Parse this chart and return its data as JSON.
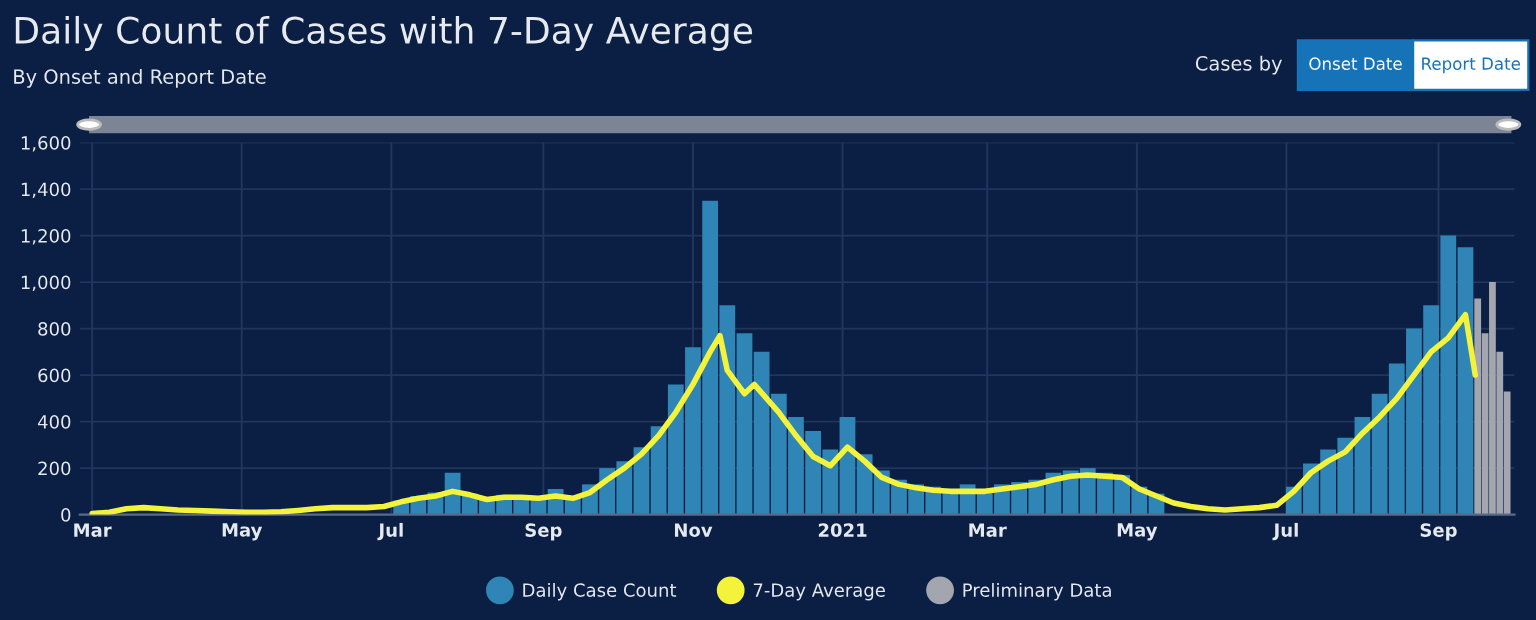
{
  "chart_data": {
    "type": "bar",
    "title": "Daily Count of Cases with 7-Day Average",
    "subtitle": "By Onset and Report Date",
    "annotations": [
      "Cases by",
      "Onset Date",
      "Report Date"
    ],
    "xlim": [
      "2020-02-25",
      "2021-10-02"
    ],
    "xticks": [
      {
        "value": "2020-03-01",
        "label": "Mar"
      },
      {
        "value": "2020-05-01",
        "label": "May"
      },
      {
        "value": "2020-07-01",
        "label": "Jul"
      },
      {
        "value": "2020-09-01",
        "label": "Sep"
      },
      {
        "value": "2020-11-01",
        "label": "Nov"
      },
      {
        "value": "2021-01-01",
        "label": "2021"
      },
      {
        "value": "2021-03-01",
        "label": "Mar"
      },
      {
        "value": "2021-05-01",
        "label": "May"
      },
      {
        "value": "2021-07-01",
        "label": "Jul"
      },
      {
        "value": "2021-09-01",
        "label": "Sep"
      }
    ],
    "ylim": [
      0,
      1600
    ],
    "yticks": [
      {
        "value": 0,
        "label": "0"
      },
      {
        "value": 200,
        "label": "200"
      },
      {
        "value": 400,
        "label": "400"
      },
      {
        "value": 600,
        "label": "600"
      },
      {
        "value": 800,
        "label": "800"
      },
      {
        "value": 1000,
        "label": "1,000"
      },
      {
        "value": 1200,
        "label": "1,200"
      },
      {
        "value": 1400,
        "label": "1,400"
      },
      {
        "value": 1600,
        "label": "1,600"
      }
    ],
    "grid": true,
    "legend": "bottom",
    "series": [
      {
        "name": "Daily Case Count",
        "type": "bar",
        "color": "#2f85b5",
        "x": [
          "2020-07-05",
          "2020-07-12",
          "2020-07-19",
          "2020-07-26",
          "2020-08-02",
          "2020-08-09",
          "2020-08-16",
          "2020-08-23",
          "2020-08-30",
          "2020-09-06",
          "2020-09-13",
          "2020-09-20",
          "2020-09-27",
          "2020-10-04",
          "2020-10-11",
          "2020-10-18",
          "2020-10-25",
          "2020-11-01",
          "2020-11-08",
          "2020-11-15",
          "2020-11-22",
          "2020-11-29",
          "2020-12-06",
          "2020-12-13",
          "2020-12-20",
          "2020-12-27",
          "2021-01-03",
          "2021-01-10",
          "2021-01-17",
          "2021-01-24",
          "2021-01-31",
          "2021-02-07",
          "2021-02-14",
          "2021-02-21",
          "2021-02-28",
          "2021-03-07",
          "2021-03-14",
          "2021-03-21",
          "2021-03-28",
          "2021-04-04",
          "2021-04-11",
          "2021-04-18",
          "2021-04-25",
          "2021-05-02",
          "2021-05-09",
          "2021-05-16",
          "2021-05-23",
          "2021-05-30",
          "2021-06-06",
          "2021-06-13",
          "2021-06-20",
          "2021-06-27",
          "2021-07-04",
          "2021-07-11",
          "2021-07-18",
          "2021-07-25",
          "2021-08-01",
          "2021-08-08",
          "2021-08-15",
          "2021-08-22",
          "2021-08-29",
          "2021-09-05",
          "2021-09-12"
        ],
        "values": [
          60,
          80,
          95,
          180,
          90,
          70,
          85,
          80,
          75,
          110,
          80,
          130,
          200,
          230,
          290,
          380,
          560,
          720,
          1350,
          900,
          780,
          700,
          520,
          420,
          360,
          280,
          420,
          260,
          190,
          150,
          130,
          120,
          110,
          130,
          110,
          130,
          140,
          150,
          180,
          190,
          200,
          180,
          170,
          120,
          90,
          null,
          null,
          null,
          null,
          null,
          null,
          null,
          120,
          220,
          280,
          330,
          420,
          520,
          650,
          800,
          900,
          1200,
          1150
        ]
      },
      {
        "name": "7-Day Average",
        "type": "line",
        "color": "#f3f33c",
        "x": [
          "2020-03-01",
          "2020-03-08",
          "2020-03-15",
          "2020-03-22",
          "2020-03-29",
          "2020-04-05",
          "2020-04-12",
          "2020-04-19",
          "2020-04-26",
          "2020-05-03",
          "2020-05-10",
          "2020-05-17",
          "2020-05-24",
          "2020-05-31",
          "2020-06-07",
          "2020-06-14",
          "2020-06-21",
          "2020-06-28",
          "2020-07-05",
          "2020-07-12",
          "2020-07-19",
          "2020-07-26",
          "2020-08-02",
          "2020-08-09",
          "2020-08-16",
          "2020-08-23",
          "2020-08-30",
          "2020-09-06",
          "2020-09-13",
          "2020-09-20",
          "2020-09-27",
          "2020-10-04",
          "2020-10-11",
          "2020-10-18",
          "2020-10-25",
          "2020-11-01",
          "2020-11-08",
          "2020-11-12",
          "2020-11-15",
          "2020-11-22",
          "2020-11-26",
          "2020-12-06",
          "2020-12-13",
          "2020-12-20",
          "2020-12-27",
          "2021-01-03",
          "2021-01-10",
          "2021-01-17",
          "2021-01-24",
          "2021-01-31",
          "2021-02-07",
          "2021-02-14",
          "2021-02-21",
          "2021-02-28",
          "2021-03-07",
          "2021-03-14",
          "2021-03-21",
          "2021-03-28",
          "2021-04-04",
          "2021-04-11",
          "2021-04-18",
          "2021-04-25",
          "2021-05-02",
          "2021-05-09",
          "2021-05-16",
          "2021-05-23",
          "2021-05-30",
          "2021-06-06",
          "2021-06-13",
          "2021-06-20",
          "2021-06-27",
          "2021-07-04",
          "2021-07-11",
          "2021-07-18",
          "2021-07-25",
          "2021-08-01",
          "2021-08-08",
          "2021-08-15",
          "2021-08-22",
          "2021-08-29",
          "2021-09-05",
          "2021-09-12",
          "2021-09-16"
        ],
        "values": [
          5,
          10,
          25,
          30,
          25,
          20,
          18,
          15,
          12,
          10,
          10,
          12,
          18,
          25,
          30,
          30,
          30,
          35,
          55,
          70,
          80,
          100,
          85,
          65,
          75,
          75,
          70,
          80,
          70,
          95,
          150,
          200,
          260,
          340,
          440,
          560,
          700,
          770,
          620,
          520,
          560,
          440,
          340,
          250,
          210,
          290,
          230,
          160,
          130,
          115,
          105,
          100,
          100,
          100,
          110,
          120,
          130,
          150,
          165,
          170,
          165,
          160,
          110,
          80,
          50,
          35,
          25,
          20,
          25,
          30,
          40,
          100,
          180,
          230,
          270,
          350,
          420,
          500,
          600,
          700,
          760,
          860,
          600
        ]
      },
      {
        "name": "Preliminary Data",
        "type": "bar",
        "color": "#a3a6ae",
        "x": [
          "2021-09-17",
          "2021-09-20",
          "2021-09-23",
          "2021-09-26",
          "2021-09-29"
        ],
        "values": [
          930,
          780,
          1000,
          700,
          530
        ]
      }
    ]
  }
}
